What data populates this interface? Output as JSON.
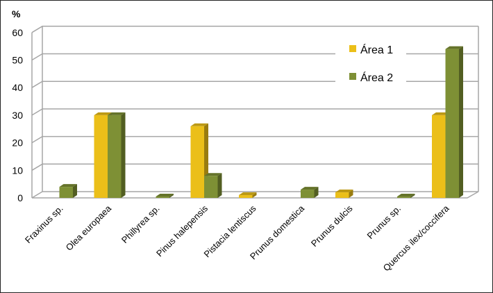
{
  "chart_data": {
    "type": "bar",
    "title": "",
    "ylabel": "%",
    "xlabel": "",
    "ylim": [
      0,
      60
    ],
    "yticks": [
      0,
      10,
      20,
      30,
      40,
      50,
      60
    ],
    "grid": true,
    "legend_position": "top-right",
    "categories": [
      "Fraxinus sp.",
      "Olea europaea",
      "Phillyrea sp.",
      "Pinus halepensis",
      "Pistacia lentiscus",
      "Prunus domestica",
      "Prunus dulcis",
      "Prunus sp.",
      "Quercus ilex/coccifera"
    ],
    "series": [
      {
        "name": "Área 1",
        "color": "#EBBF19",
        "values": [
          0,
          30,
          0,
          26,
          1,
          0,
          2,
          0,
          30
        ]
      },
      {
        "name": "Área 2",
        "color": "#7E9035",
        "values": [
          4,
          30,
          0.5,
          8,
          0,
          3,
          0,
          0.5,
          54
        ]
      }
    ]
  }
}
